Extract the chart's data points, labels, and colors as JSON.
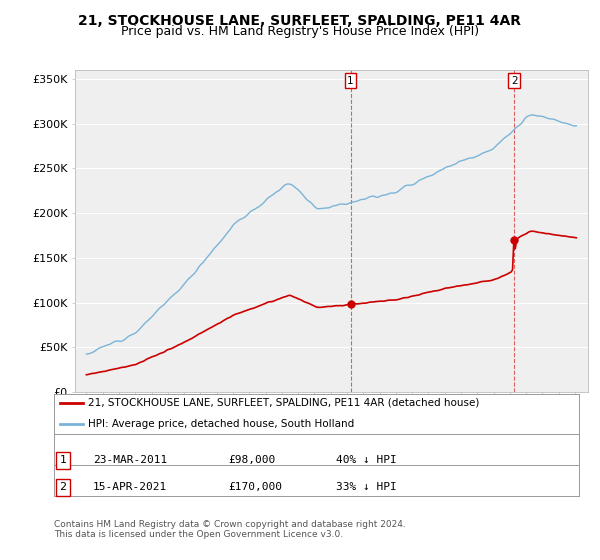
{
  "title": "21, STOCKHOUSE LANE, SURFLEET, SPALDING, PE11 4AR",
  "subtitle": "Price paid vs. HM Land Registry's House Price Index (HPI)",
  "ylim": [
    0,
    360000
  ],
  "yticks": [
    0,
    50000,
    100000,
    150000,
    200000,
    250000,
    300000,
    350000
  ],
  "ytick_labels": [
    "£0",
    "£50K",
    "£100K",
    "£150K",
    "£200K",
    "£250K",
    "£300K",
    "£350K"
  ],
  "hpi_color": "#7ab4d8",
  "price_color": "#cc0000",
  "sale1_date": 2011.22,
  "sale1_price": 98000,
  "sale2_date": 2021.28,
  "sale2_price": 170000,
  "legend1": "21, STOCKHOUSE LANE, SURFLEET, SPALDING, PE11 4AR (detached house)",
  "legend2": "HPI: Average price, detached house, South Holland",
  "footnote": "Contains HM Land Registry data © Crown copyright and database right 2024.\nThis data is licensed under the Open Government Licence v3.0.",
  "background_color": "#ffffff",
  "plot_bg_color": "#efefef",
  "grid_color": "#ffffff",
  "vline_color": "#cc0000",
  "title_fontsize": 10,
  "subtitle_fontsize": 9
}
